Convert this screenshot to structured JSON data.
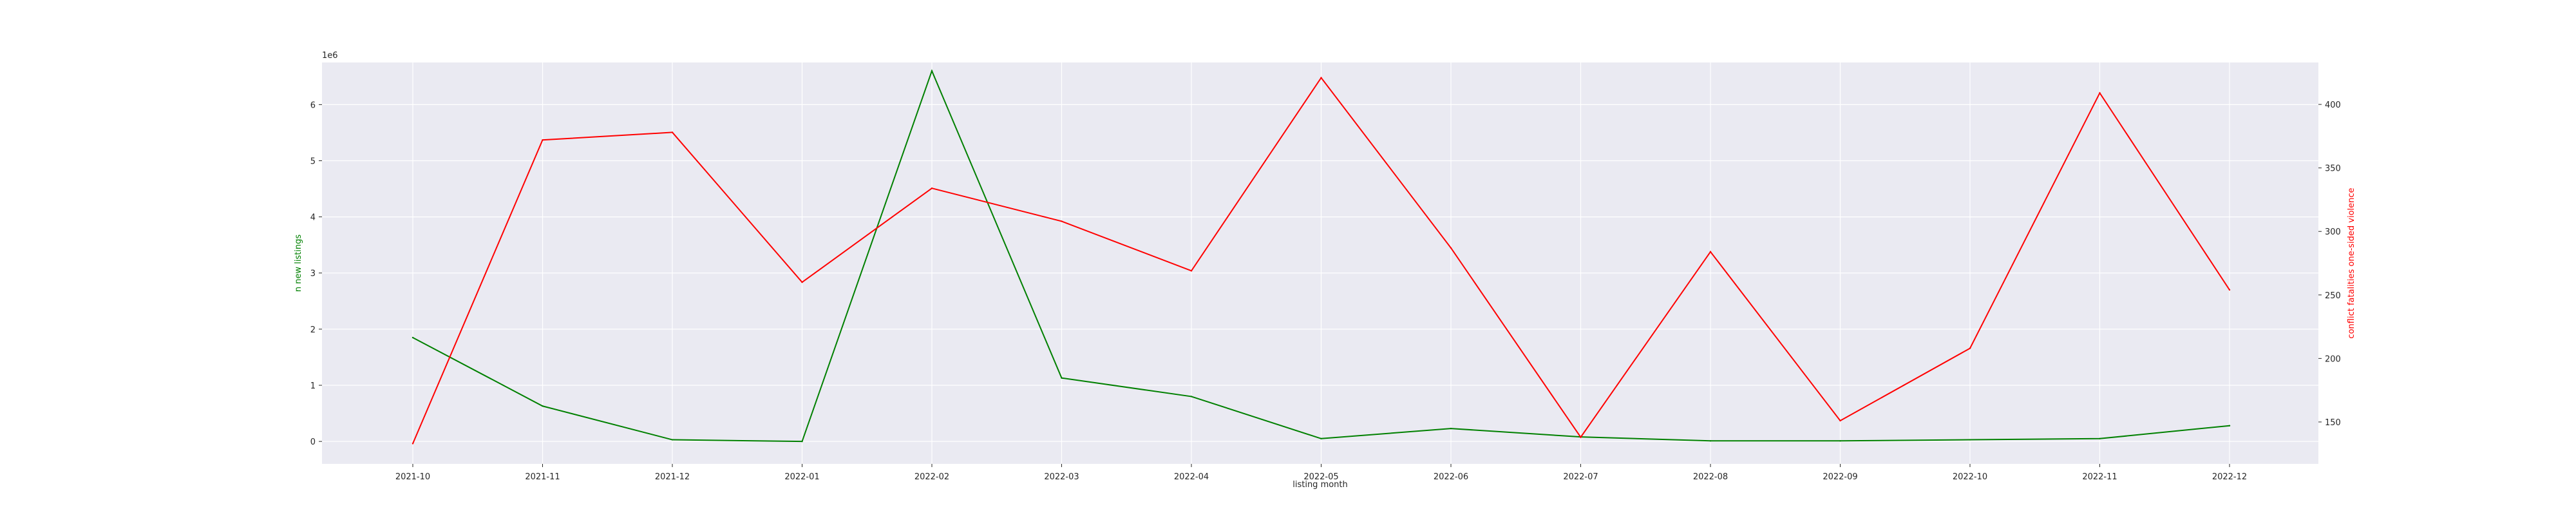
{
  "chart_data": {
    "type": "line",
    "xlabel": "listing month",
    "categories": [
      "2021-10",
      "2021-11",
      "2021-12",
      "2022-01",
      "2022-02",
      "2022-03",
      "2022-04",
      "2022-05",
      "2022-06",
      "2022-07",
      "2022-08",
      "2022-09",
      "2022-10",
      "2022-11",
      "2022-12"
    ],
    "left_axis": {
      "label": "n new listings",
      "offset_label": "1e6",
      "ticks": [
        "0",
        "1",
        "2",
        "3",
        "4",
        "5",
        "6"
      ],
      "ylim": [
        -0.4,
        6.75
      ],
      "color": "#008000"
    },
    "right_axis": {
      "label": "conflict fatalities one-sided violence",
      "ticks": [
        "150",
        "200",
        "250",
        "300",
        "350",
        "400"
      ],
      "ylim": [
        117,
        433
      ],
      "color": "#ff0000"
    },
    "series": [
      {
        "axis": "left",
        "color": "#008000",
        "values": [
          1.85,
          0.63,
          0.03,
          0.0,
          6.6,
          1.13,
          0.8,
          0.05,
          0.23,
          0.08,
          0.01,
          0.01,
          0.03,
          0.05,
          0.28
        ]
      },
      {
        "axis": "right",
        "color": "#ff0000",
        "values": [
          133,
          372,
          378,
          260,
          334,
          308,
          269,
          421,
          287,
          138,
          284,
          151,
          208,
          409,
          254
        ]
      }
    ],
    "grid": true,
    "legend": "none"
  }
}
